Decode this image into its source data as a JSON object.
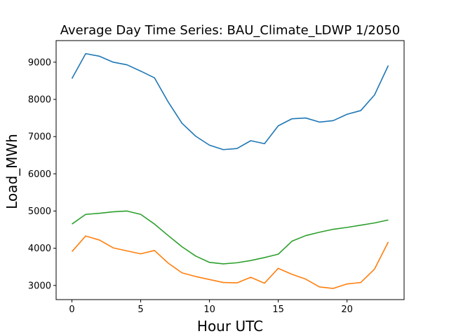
{
  "chart_data": {
    "type": "line",
    "title": "Average Day Time Series: BAU_Climate_LDWP 1/2050",
    "xlabel": "Hour UTC",
    "ylabel": "Load_MWh",
    "xlim": [
      -1.15,
      24.15
    ],
    "ylim": [
      2620,
      9580
    ],
    "xticks": [
      0,
      5,
      10,
      15,
      20
    ],
    "yticks": [
      3000,
      4000,
      5000,
      6000,
      7000,
      8000,
      9000
    ],
    "grid": false,
    "legend": null,
    "x": [
      0,
      1,
      2,
      3,
      4,
      5,
      6,
      7,
      8,
      9,
      10,
      11,
      12,
      13,
      14,
      15,
      16,
      17,
      18,
      19,
      20,
      21,
      22,
      23
    ],
    "series": [
      {
        "color": "#1f77b4",
        "values": [
          8560,
          9230,
          9160,
          9000,
          8930,
          8760,
          8580,
          7930,
          7360,
          7010,
          6770,
          6650,
          6680,
          6890,
          6810,
          7290,
          7480,
          7500,
          7390,
          7430,
          7600,
          7700,
          8120,
          8910
        ]
      },
      {
        "color": "#ff7f0e",
        "values": [
          3910,
          4330,
          4220,
          4010,
          3930,
          3850,
          3940,
          3600,
          3340,
          3240,
          3160,
          3080,
          3070,
          3220,
          3060,
          3460,
          3300,
          3170,
          2960,
          2920,
          3040,
          3080,
          3440,
          4170
        ]
      },
      {
        "color": "#2ca02c",
        "values": [
          4650,
          4910,
          4940,
          4980,
          5000,
          4910,
          4650,
          4340,
          4040,
          3790,
          3620,
          3580,
          3610,
          3670,
          3750,
          3840,
          4190,
          4340,
          4430,
          4510,
          4560,
          4620,
          4680,
          4760
        ]
      }
    ]
  }
}
